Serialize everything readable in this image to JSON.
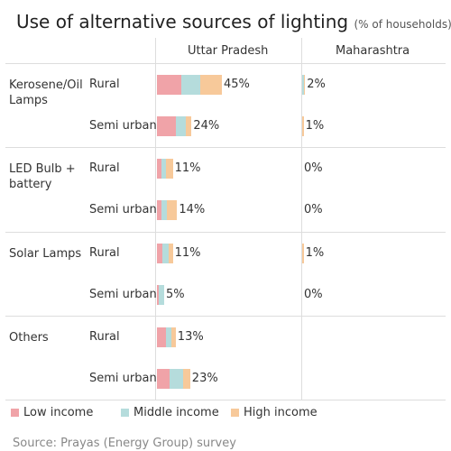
{
  "chart_data": {
    "type": "bar",
    "orientation": "horizontal",
    "stacked": true,
    "title": "Use of alternative sources of lighting",
    "subtitle": "(% of households)",
    "panels": [
      "Uttar Pradesh",
      "Maharashtra"
    ],
    "groups": [
      {
        "name": "Kerosene/Oil Lamps",
        "rows": [
          "Rural",
          "Semi urban"
        ]
      },
      {
        "name": "LED Bulb + battery",
        "rows": [
          "Rural",
          "Semi urban"
        ]
      },
      {
        "name": "Solar Lamps",
        "rows": [
          "Rural",
          "Semi urban"
        ]
      },
      {
        "name": "Others",
        "rows": [
          "Rural",
          "Semi urban"
        ]
      }
    ],
    "xlim": [
      0,
      100
    ],
    "series": [
      {
        "name": "Low income",
        "color": "#f0a3a8",
        "values": [
          [
            17,
            13,
            3,
            3,
            4,
            1,
            6,
            9
          ],
          [
            0,
            0,
            0,
            0,
            0,
            0,
            null,
            null
          ]
        ]
      },
      {
        "name": "Middle income",
        "color": "#b5dcdc",
        "values": [
          [
            13,
            7,
            3,
            4,
            4,
            4,
            4,
            9
          ],
          [
            1,
            0,
            0,
            0,
            0,
            0,
            null,
            null
          ]
        ]
      },
      {
        "name": "High income",
        "color": "#f7c99a",
        "values": [
          [
            15,
            4,
            5,
            7,
            3,
            0,
            3,
            5
          ],
          [
            1,
            1,
            0,
            0,
            1,
            0,
            null,
            null
          ]
        ]
      }
    ],
    "totals": [
      [
        45,
        24,
        11,
        14,
        11,
        5,
        13,
        23
      ],
      [
        2,
        1,
        0,
        0,
        1,
        0,
        null,
        null
      ]
    ],
    "total_labels": [
      [
        "45%",
        "24%",
        "11%",
        "14%",
        "11%",
        "5%",
        "13%",
        "23%"
      ],
      [
        "2%",
        "1%",
        "0%",
        "0%",
        "1%",
        "0%",
        null,
        null
      ]
    ],
    "source": "Source: Prayas (Energy Group) survey"
  }
}
